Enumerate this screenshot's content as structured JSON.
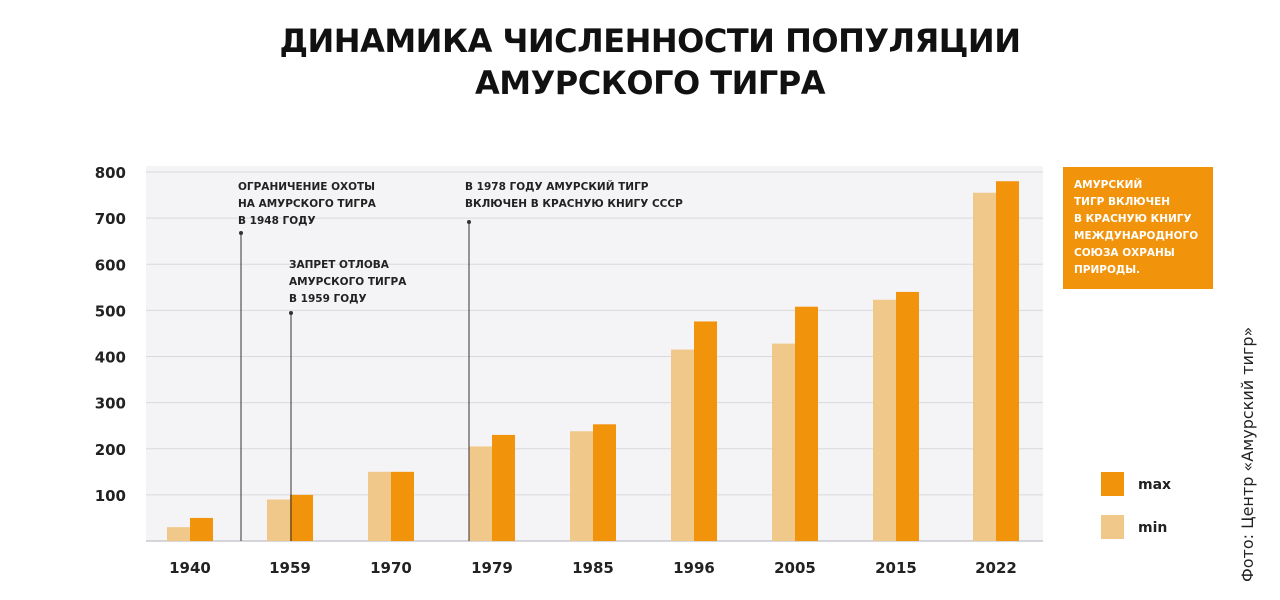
{
  "title_lines": [
    "ДИНАМИКА ЧИСЛЕННОСТИ ПОПУЛЯЦИИ",
    "АМУРСКОГО ТИГРА"
  ],
  "callout_lines": [
    "АМУРСКИЙ",
    "ТИГР ВКЛЮЧЕН",
    "В КРАСНУЮ КНИГУ",
    "МЕЖДУНАРОДНОГО",
    "СОЮЗА ОХРАНЫ",
    "ПРИРОДЫ."
  ],
  "photo_credit": "Фото: Центр «Амурский тигр»",
  "colors": {
    "max": "#f2930c",
    "min": "#f0c98a",
    "plot_bg": "#f4f4f6",
    "grid": "#d8d8de"
  },
  "chart_data": {
    "type": "bar",
    "title": "ДИНАМИКА ЧИСЛЕННОСТИ ПОПУЛЯЦИИ АМУРСКОГО ТИГРА",
    "categories": [
      "1940",
      "1959",
      "1970",
      "1979",
      "1985",
      "1996",
      "2005",
      "2015",
      "2022"
    ],
    "series": [
      {
        "name": "min",
        "values": [
          30,
          90,
          150,
          205,
          238,
          415,
          428,
          523,
          755
        ]
      },
      {
        "name": "max",
        "values": [
          50,
          100,
          150,
          230,
          253,
          476,
          508,
          540,
          780
        ]
      }
    ],
    "yticks": [
      100,
      200,
      300,
      400,
      500,
      600,
      700,
      800
    ],
    "ylim": [
      0,
      800
    ],
    "grid": true,
    "legend_position": "right",
    "legend_order": [
      "max",
      "min"
    ],
    "annotations": [
      {
        "after_category": "1940",
        "lines": [
          "ОГРАНИЧЕНИЕ ОХОТЫ",
          "НА АМУРСКОГО ТИГРА",
          "В 1948 ГОДУ"
        ]
      },
      {
        "at_category": "1959",
        "lines": [
          "ЗАПРЕТ ОТЛОВА",
          "АМУРСКОГО ТИГРА",
          "В 1959 ГОДУ"
        ]
      },
      {
        "before_category": "1979",
        "lines": [
          "В 1978 ГОДУ АМУРСКИЙ ТИГР",
          "ВКЛЮЧЕН В КРАСНУЮ КНИГУ СССР"
        ]
      }
    ]
  }
}
